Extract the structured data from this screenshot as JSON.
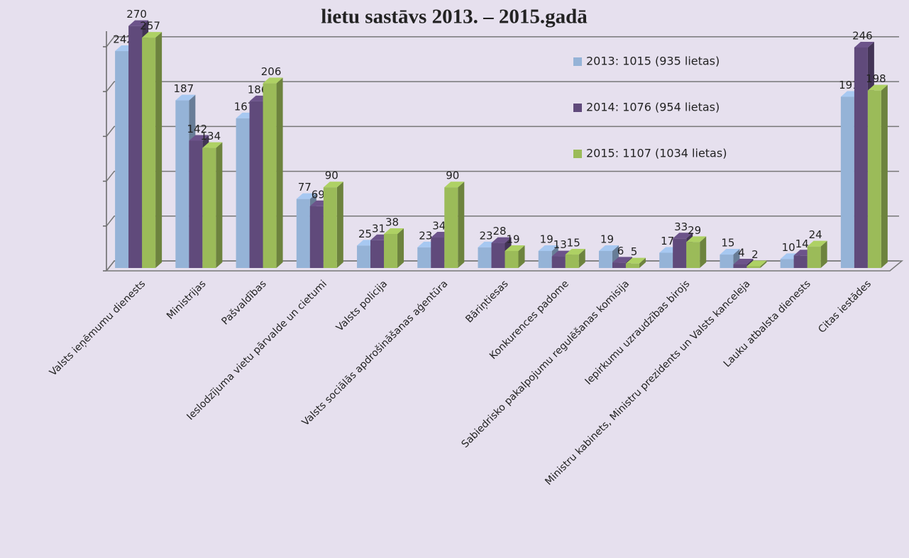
{
  "chart_data": {
    "type": "bar3d",
    "title": "lietu sastāvs 2013. – 2015.gadā",
    "categories": [
      "Valsts ieņēmumu dienests",
      "Ministrijas",
      "Pašvaldības",
      "Ieslodzījuma vietu pārvalde un cietumi",
      "Valsts policija",
      "Valsts sociālās apdrošināšanas aģentūra",
      "Bāriņtiesas",
      "Konkurences padome",
      "Sabiedrisko pakalpojumu regulēšanas komisija",
      "Iepirkumu uzraudzības birojs",
      "Ministru kabinets, Ministru prezidents un Valsts kanceleja",
      "Lauku atbalsta dienests",
      "Citas iestādes"
    ],
    "series": [
      {
        "name": "2013: 1015 (935 lietas)",
        "color": "#95b3d7",
        "values": [
          242,
          187,
          167,
          77,
          25,
          23,
          23,
          19,
          19,
          17,
          15,
          10,
          191
        ]
      },
      {
        "name": "2014: 1076 (954 lietas)",
        "color": "#604a7b",
        "values": [
          270,
          142,
          186,
          69,
          31,
          34,
          28,
          13,
          6,
          33,
          4,
          14,
          246
        ]
      },
      {
        "name": "2015: 1107 (1034 lietas)",
        "color": "#9bbb59",
        "values": [
          257,
          134,
          206,
          90,
          38,
          90,
          19,
          15,
          5,
          29,
          2,
          24,
          198
        ]
      }
    ],
    "ylim": [
      0,
      280
    ],
    "yticks": [
      0,
      50,
      100,
      150,
      200,
      250
    ],
    "grid": true
  }
}
